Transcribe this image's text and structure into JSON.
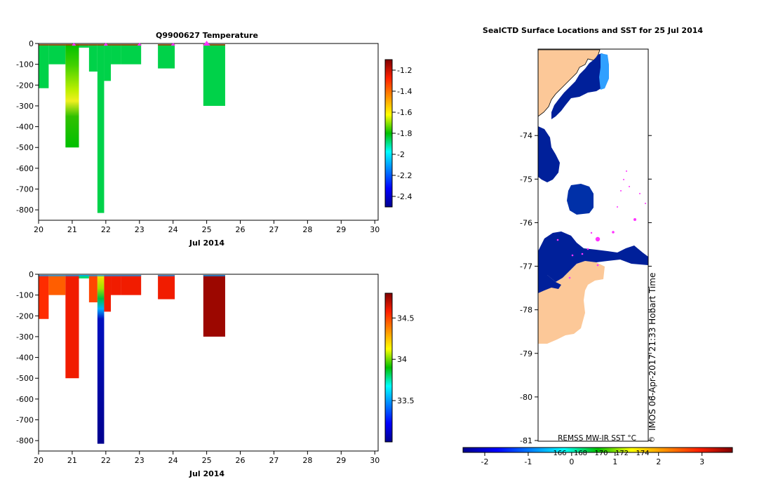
{
  "chart_data": [
    {
      "type": "heatmap",
      "title": "Q9900627  Temperature",
      "xlabel": "Jul 2014",
      "ylabel": "",
      "x_ticks": [
        "20",
        "21",
        "22",
        "23",
        "24",
        "25",
        "26",
        "27",
        "28",
        "29",
        "30"
      ],
      "y_ticks": [
        "0",
        "-100",
        "-200",
        "-300",
        "-400",
        "-500",
        "-600",
        "-700",
        "-800"
      ],
      "xlim": [
        20,
        30.1
      ],
      "ylim": [
        -850,
        0
      ],
      "colorbar": {
        "ticks": [
          "-1.2",
          "-1.4",
          "-1.6",
          "-1.8",
          "-2",
          "-2.2",
          "-2.4"
        ],
        "range": [
          -2.5,
          -1.1
        ]
      },
      "profiles": [
        {
          "x0": 20.0,
          "x1": 20.3,
          "depth": 215,
          "value": -1.85
        },
        {
          "x0": 20.3,
          "x1": 20.8,
          "depth": 100,
          "value": -1.85
        },
        {
          "x0": 20.8,
          "x1": 21.2,
          "depth": 500,
          "value": -1.8
        },
        {
          "x0": 21.2,
          "x1": 21.5,
          "depth": 20,
          "value": -1.85
        },
        {
          "x0": 21.5,
          "x1": 21.75,
          "depth": 135,
          "value": -1.85
        },
        {
          "x0": 21.75,
          "x1": 21.95,
          "depth": 815,
          "value": -1.85
        },
        {
          "x0": 21.95,
          "x1": 22.15,
          "depth": 180,
          "value": -1.85
        },
        {
          "x0": 22.15,
          "x1": 22.45,
          "depth": 100,
          "value": -1.85
        },
        {
          "x0": 22.45,
          "x1": 23.05,
          "depth": 100,
          "value": -1.85
        },
        {
          "x0": 23.55,
          "x1": 24.05,
          "depth": 120,
          "value": -1.85
        },
        {
          "x0": 24.9,
          "x1": 25.55,
          "depth": 300,
          "value": -1.85
        }
      ]
    },
    {
      "type": "heatmap",
      "title": "",
      "xlabel": "Jul 2014",
      "ylabel": "",
      "x_ticks": [
        "20",
        "21",
        "22",
        "23",
        "24",
        "25",
        "26",
        "27",
        "28",
        "29",
        "30"
      ],
      "y_ticks": [
        "0",
        "-100",
        "-200",
        "-300",
        "-400",
        "-500",
        "-600",
        "-700",
        "-800"
      ],
      "xlim": [
        20,
        30.1
      ],
      "ylim": [
        -850,
        0
      ],
      "colorbar": {
        "ticks": [
          "34.5",
          "34",
          "33.5"
        ],
        "range": [
          33.0,
          34.8
        ]
      },
      "profiles": [
        {
          "x0": 20.0,
          "x1": 20.3,
          "depth": 215,
          "value": 34.55
        },
        {
          "x0": 20.3,
          "x1": 20.8,
          "depth": 100,
          "value": 34.45
        },
        {
          "x0": 20.8,
          "x1": 21.2,
          "depth": 500,
          "value": 34.6
        },
        {
          "x0": 21.2,
          "x1": 21.5,
          "depth": 20,
          "value": 33.8
        },
        {
          "x0": 21.5,
          "x1": 21.75,
          "depth": 135,
          "value": 34.5
        },
        {
          "x0": 21.75,
          "x1": 21.95,
          "depth": 815,
          "value": 33.1
        },
        {
          "x0": 21.95,
          "x1": 22.15,
          "depth": 180,
          "value": 34.6
        },
        {
          "x0": 22.15,
          "x1": 22.45,
          "depth": 100,
          "value": 34.6
        },
        {
          "x0": 22.45,
          "x1": 23.05,
          "depth": 100,
          "value": 34.6
        },
        {
          "x0": 23.55,
          "x1": 24.05,
          "depth": 120,
          "value": 34.6
        },
        {
          "x0": 24.9,
          "x1": 25.55,
          "depth": 300,
          "value": 34.75
        }
      ]
    },
    {
      "type": "heatmap",
      "title": "SealCTD Surface Locations and SST for 25 Jul 2014",
      "y_ticks": [
        "-74",
        "-75",
        "-76",
        "-77",
        "-78",
        "-79",
        "-80",
        "-81"
      ],
      "ylim": [
        -81,
        -72
      ],
      "colorbar": {
        "label": "REMSS MW-IR SST °C",
        "ticks": [
          "-2",
          "-1",
          "0",
          "1",
          "2",
          "3"
        ],
        "lon_ticks": [
          "166",
          "168",
          "170",
          "172",
          "174"
        ],
        "range": [
          -2.5,
          3.7
        ]
      },
      "watermark": "IMOS 06-Apr-2017 21:33 Hobart Time",
      "copyright": "©"
    }
  ]
}
